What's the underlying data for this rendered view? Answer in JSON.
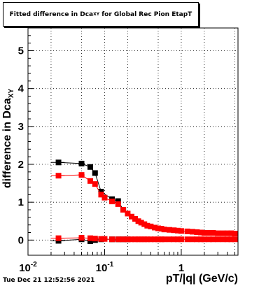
{
  "title": {
    "main": "Fitted difference in Dca",
    "sub": "XY",
    "tail": " for Global Rec Pion EtapT"
  },
  "ylabel": {
    "main": "difference in Dca",
    "sub": "XY"
  },
  "xlabel": "pT/|q| (GeV/c)",
  "timestamp": "Tue Dec 21 12:52:56 2021",
  "chart_data": {
    "type": "scatter",
    "title": "Fitted difference in DcaXY for Global Rec Pion EtapT",
    "xlabel": "pT/|q| (GeV/c)",
    "ylabel": "difference in DcaXY",
    "xscale": "log",
    "xlim": [
      0.01,
      5.5
    ],
    "ylim": [
      -0.4,
      5.6
    ],
    "grid": true,
    "x_ticks": [
      {
        "value": 0.01,
        "label": "10",
        "sup": "-2"
      },
      {
        "value": 0.1,
        "label": "10",
        "sup": "-1"
      },
      {
        "value": 1,
        "label": "1",
        "sup": ""
      }
    ],
    "y_ticks": [
      {
        "value": 0,
        "label": "0"
      },
      {
        "value": 1,
        "label": "1"
      },
      {
        "value": 2,
        "label": "2"
      },
      {
        "value": 3,
        "label": "3"
      },
      {
        "value": 4,
        "label": "4"
      },
      {
        "value": 5,
        "label": "5"
      }
    ],
    "series": [
      {
        "color": "#000000",
        "x": [
          0.025,
          0.05,
          0.065,
          0.075,
          0.09,
          0.125,
          0.15,
          0.175
        ],
        "y": [
          2.05,
          2.02,
          1.93,
          1.77,
          1.28,
          1.08,
          1.03,
          0.8
        ],
        "xerr": [
          0.005,
          0.005,
          0.004,
          0.004,
          0.006,
          0.007,
          0.008,
          0.01
        ]
      },
      {
        "color": "#000000",
        "x": [
          0.025,
          0.05,
          0.065,
          0.075,
          0.09,
          0.125,
          0.15,
          0.175,
          0.2
        ],
        "y": [
          -0.02,
          0.02,
          -0.03,
          0.0,
          0.02,
          0.02,
          0.02,
          0.02,
          0.02
        ],
        "xerr": [
          0.005,
          0.005,
          0.004,
          0.004,
          0.006,
          0.007,
          0.008,
          0.01,
          0.01
        ]
      },
      {
        "color": "#ff0000",
        "x": [
          0.025,
          0.05,
          0.065,
          0.075,
          0.09,
          0.1,
          0.125,
          0.15,
          0.175,
          0.2,
          0.225,
          0.25,
          0.275,
          0.3,
          0.33,
          0.36,
          0.4,
          0.45,
          0.5,
          0.55,
          0.6,
          0.7,
          0.8,
          0.9,
          1.0,
          1.2,
          1.4,
          1.6,
          1.8,
          2.0,
          2.3,
          2.6,
          3.0,
          3.5,
          4.0,
          4.5,
          5.0
        ],
        "y": [
          1.7,
          1.72,
          1.56,
          1.48,
          1.2,
          1.12,
          1.02,
          0.95,
          0.8,
          0.7,
          0.62,
          0.56,
          0.5,
          0.46,
          0.42,
          0.38,
          0.36,
          0.33,
          0.31,
          0.3,
          0.28,
          0.27,
          0.26,
          0.25,
          0.24,
          0.23,
          0.22,
          0.21,
          0.2,
          0.19,
          0.19,
          0.19,
          0.18,
          0.18,
          0.18,
          0.18,
          0.17
        ],
        "xerr": [
          0.005,
          0.005,
          0.004,
          0.004,
          0.006,
          0.006,
          0.007,
          0.008,
          0.01,
          0.01,
          0.012,
          0.012,
          0.012,
          0.014,
          0.015,
          0.015,
          0.02,
          0.025,
          0.025,
          0.025,
          0.03,
          0.04,
          0.05,
          0.05,
          0.05,
          0.1,
          0.1,
          0.1,
          0.1,
          0.1,
          0.15,
          0.15,
          0.2,
          0.25,
          0.25,
          0.25,
          0.25
        ]
      },
      {
        "color": "#ff0000",
        "x": [
          0.025,
          0.05,
          0.065,
          0.075,
          0.09,
          0.1,
          0.125,
          0.15,
          0.175,
          0.2,
          0.225,
          0.25,
          0.275,
          0.3,
          0.33,
          0.36,
          0.4,
          0.45,
          0.5,
          0.55,
          0.6,
          0.7,
          0.8,
          0.9,
          1.0,
          1.2,
          1.4,
          1.6,
          1.8,
          2.0,
          2.3,
          2.6,
          3.0,
          3.5,
          4.0,
          4.5,
          5.0
        ],
        "y": [
          0.05,
          0.06,
          0.05,
          0.04,
          0.03,
          0.03,
          0.02,
          0.02,
          0.02,
          0.02,
          0.02,
          0.02,
          0.02,
          0.02,
          0.02,
          0.02,
          0.02,
          0.02,
          0.02,
          0.02,
          0.02,
          0.02,
          0.02,
          0.02,
          0.02,
          0.02,
          0.02,
          0.02,
          0.02,
          0.02,
          0.02,
          0.02,
          0.02,
          0.02,
          0.02,
          0.02,
          0.02
        ],
        "xerr": [
          0.005,
          0.005,
          0.004,
          0.004,
          0.006,
          0.006,
          0.007,
          0.008,
          0.01,
          0.01,
          0.012,
          0.012,
          0.012,
          0.014,
          0.015,
          0.015,
          0.02,
          0.025,
          0.025,
          0.025,
          0.03,
          0.04,
          0.05,
          0.05,
          0.05,
          0.1,
          0.1,
          0.1,
          0.1,
          0.1,
          0.15,
          0.15,
          0.2,
          0.25,
          0.25,
          0.25,
          0.25
        ]
      }
    ],
    "colors": {
      "frame": "#000000",
      "grid": "#000000",
      "series_black": "#000000",
      "series_red": "#ff0000"
    }
  }
}
